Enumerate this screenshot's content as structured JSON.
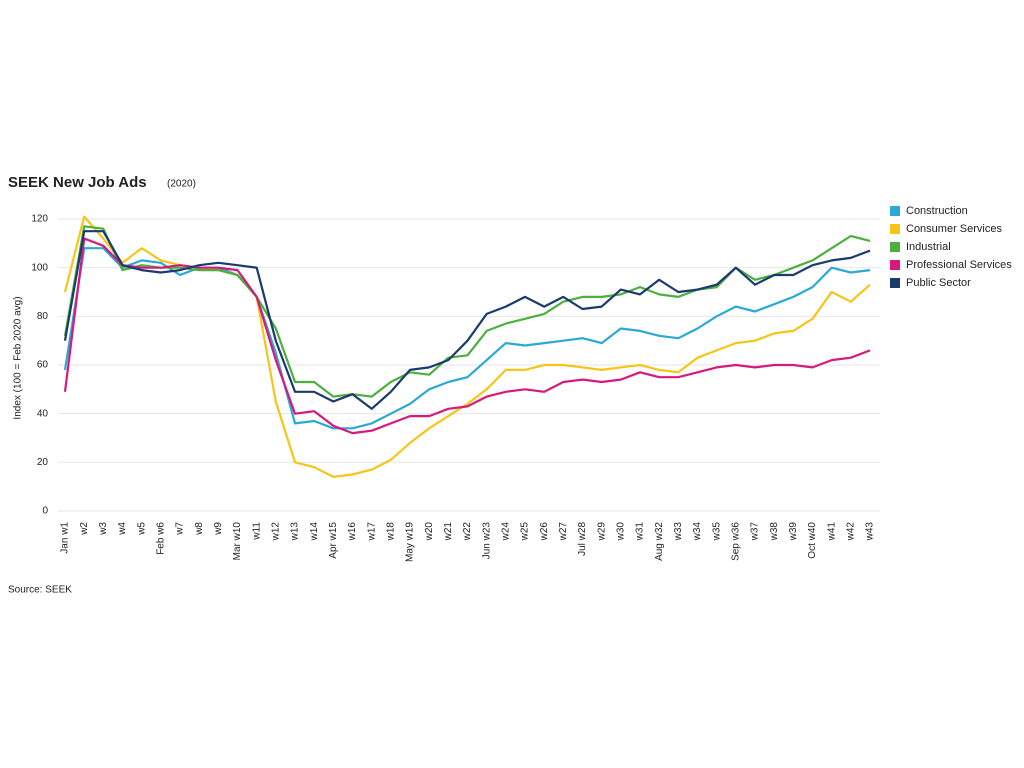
{
  "chart_data": {
    "type": "line",
    "title": "SEEK New Job Ads",
    "subtitle": "(2020)",
    "y_label": "Index (100 = Feb 2020 avg)",
    "source": "Source: SEEK",
    "categories": [
      "Jan w1",
      "w2",
      "w3",
      "w4",
      "w5",
      "Feb w6",
      "w7",
      "w8",
      "w9",
      "Mar w10",
      "w11",
      "w12",
      "w13",
      "w14",
      "Apr w15",
      "w16",
      "w17",
      "w18",
      "May w19",
      "w20",
      "w21",
      "w22",
      "Jun w23",
      "w24",
      "w25",
      "w26",
      "w27",
      "Jul w28",
      "w29",
      "w30",
      "w31",
      "Aug w32",
      "w33",
      "w34",
      "w35",
      "Sep w36",
      "w37",
      "w38",
      "w39",
      "Oct w40",
      "w41",
      "w42",
      "w43"
    ],
    "series": [
      {
        "name": "Construction",
        "color": "#2aa9d6",
        "values": [
          58,
          108,
          108,
          100,
          103,
          102,
          97,
          100,
          100,
          97,
          88,
          65,
          36,
          37,
          34,
          34,
          36,
          40,
          44,
          50,
          53,
          55,
          62,
          69,
          68,
          69,
          70,
          71,
          69,
          75,
          74,
          72,
          71,
          75,
          80,
          84,
          82,
          85,
          88,
          92,
          100,
          98,
          99
        ]
      },
      {
        "name": "Consumer Services",
        "color": "#f5c518",
        "values": [
          90,
          121,
          112,
          102,
          108,
          103,
          101,
          100,
          99,
          97,
          88,
          45,
          20,
          18,
          14,
          15,
          17,
          21,
          28,
          34,
          39,
          44,
          50,
          58,
          58,
          60,
          60,
          59,
          58,
          59,
          60,
          58,
          57,
          63,
          66,
          69,
          70,
          73,
          74,
          79,
          90,
          86,
          93
        ]
      },
      {
        "name": "Industrial",
        "color": "#4caf3e",
        "values": [
          72,
          117,
          116,
          99,
          101,
          100,
          100,
          99,
          99,
          97,
          88,
          75,
          53,
          53,
          47,
          48,
          47,
          53,
          57,
          56,
          63,
          64,
          74,
          77,
          79,
          81,
          86,
          88,
          88,
          89,
          92,
          89,
          88,
          91,
          92,
          100,
          95,
          97,
          100,
          103,
          108,
          113,
          111
        ]
      },
      {
        "name": "Professional Services",
        "color": "#d6197e",
        "values": [
          49,
          112,
          109,
          101,
          100,
          100,
          101,
          100,
          100,
          99,
          88,
          62,
          40,
          41,
          35,
          32,
          33,
          36,
          39,
          39,
          42,
          43,
          47,
          49,
          50,
          49,
          53,
          54,
          53,
          54,
          57,
          55,
          55,
          57,
          59,
          60,
          59,
          60,
          60,
          59,
          62,
          63,
          66
        ]
      },
      {
        "name": "Public Sector",
        "color": "#1b3a6e",
        "values": [
          70,
          115,
          115,
          101,
          99,
          98,
          99,
          101,
          102,
          101,
          100,
          70,
          49,
          49,
          45,
          48,
          42,
          49,
          58,
          59,
          62,
          70,
          81,
          84,
          88,
          84,
          88,
          83,
          84,
          91,
          89,
          95,
          90,
          91,
          93,
          100,
          93,
          97,
          97,
          101,
          103,
          104,
          107
        ]
      }
    ],
    "ylim": [
      0,
      120
    ],
    "yticks": [
      0,
      20,
      40,
      60,
      80,
      100,
      120
    ],
    "grid": true,
    "legend": "top-right"
  }
}
